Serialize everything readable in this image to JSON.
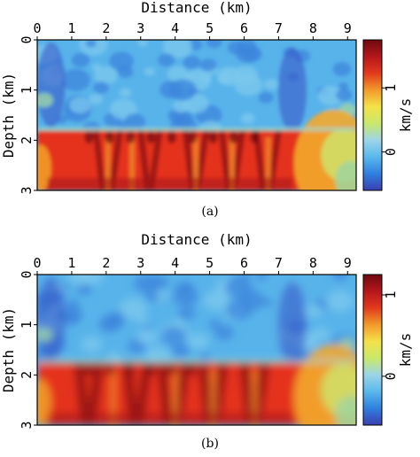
{
  "chart_data": [
    {
      "type": "heatmap",
      "panel_label": "(a)",
      "title": "",
      "xlabel": "Distance (km)",
      "ylabel": "Depth (km)",
      "xlim": [
        0,
        9.25
      ],
      "ylim": [
        0,
        3
      ],
      "x_ticks": [
        "0",
        "1",
        "2",
        "3",
        "4",
        "5",
        "6",
        "7",
        "8",
        "9"
      ],
      "y_ticks": [
        "0",
        "1",
        "2",
        "3"
      ],
      "colorbar": {
        "label": "km/s",
        "range": [
          -0.6,
          1.75
        ],
        "ticks": [
          "0",
          "1"
        ],
        "colormap": [
          "#3a3fb0",
          "#2f7fe0",
          "#59b8ec",
          "#9bd5e8",
          "#c9e86a",
          "#f4e24a",
          "#f39a2a",
          "#e23a1c",
          "#b5161a",
          "#6d0a10"
        ]
      },
      "regions": [
        {
          "name": "upper layer",
          "depth_range": [
            0,
            1.8
          ],
          "value": -0.1
        },
        {
          "name": "lower layer",
          "depth_range": [
            1.8,
            3
          ],
          "value": 1.3
        }
      ]
    },
    {
      "type": "heatmap",
      "panel_label": "(b)",
      "title": "",
      "xlabel": "Distance (km)",
      "ylabel": "Depth (km)",
      "xlim": [
        0,
        9.25
      ],
      "ylim": [
        0,
        3
      ],
      "x_ticks": [
        "0",
        "1",
        "2",
        "3",
        "4",
        "5",
        "6",
        "7",
        "8",
        "9"
      ],
      "y_ticks": [
        "0",
        "1",
        "2",
        "3"
      ],
      "colorbar": {
        "label": "km/s",
        "range": [
          -0.6,
          1.25
        ],
        "ticks": [
          "0",
          "1"
        ],
        "colormap": [
          "#3a3fb0",
          "#2f7fe0",
          "#59b8ec",
          "#9bd5e8",
          "#c9e86a",
          "#f4e24a",
          "#f39a2a",
          "#e23a1c",
          "#b5161a",
          "#6d0a10"
        ]
      },
      "regions": [
        {
          "name": "upper layer",
          "depth_range": [
            0,
            1.75
          ],
          "value": -0.1
        },
        {
          "name": "lower layer",
          "depth_range": [
            1.75,
            3
          ],
          "value": 1.0
        }
      ]
    }
  ]
}
